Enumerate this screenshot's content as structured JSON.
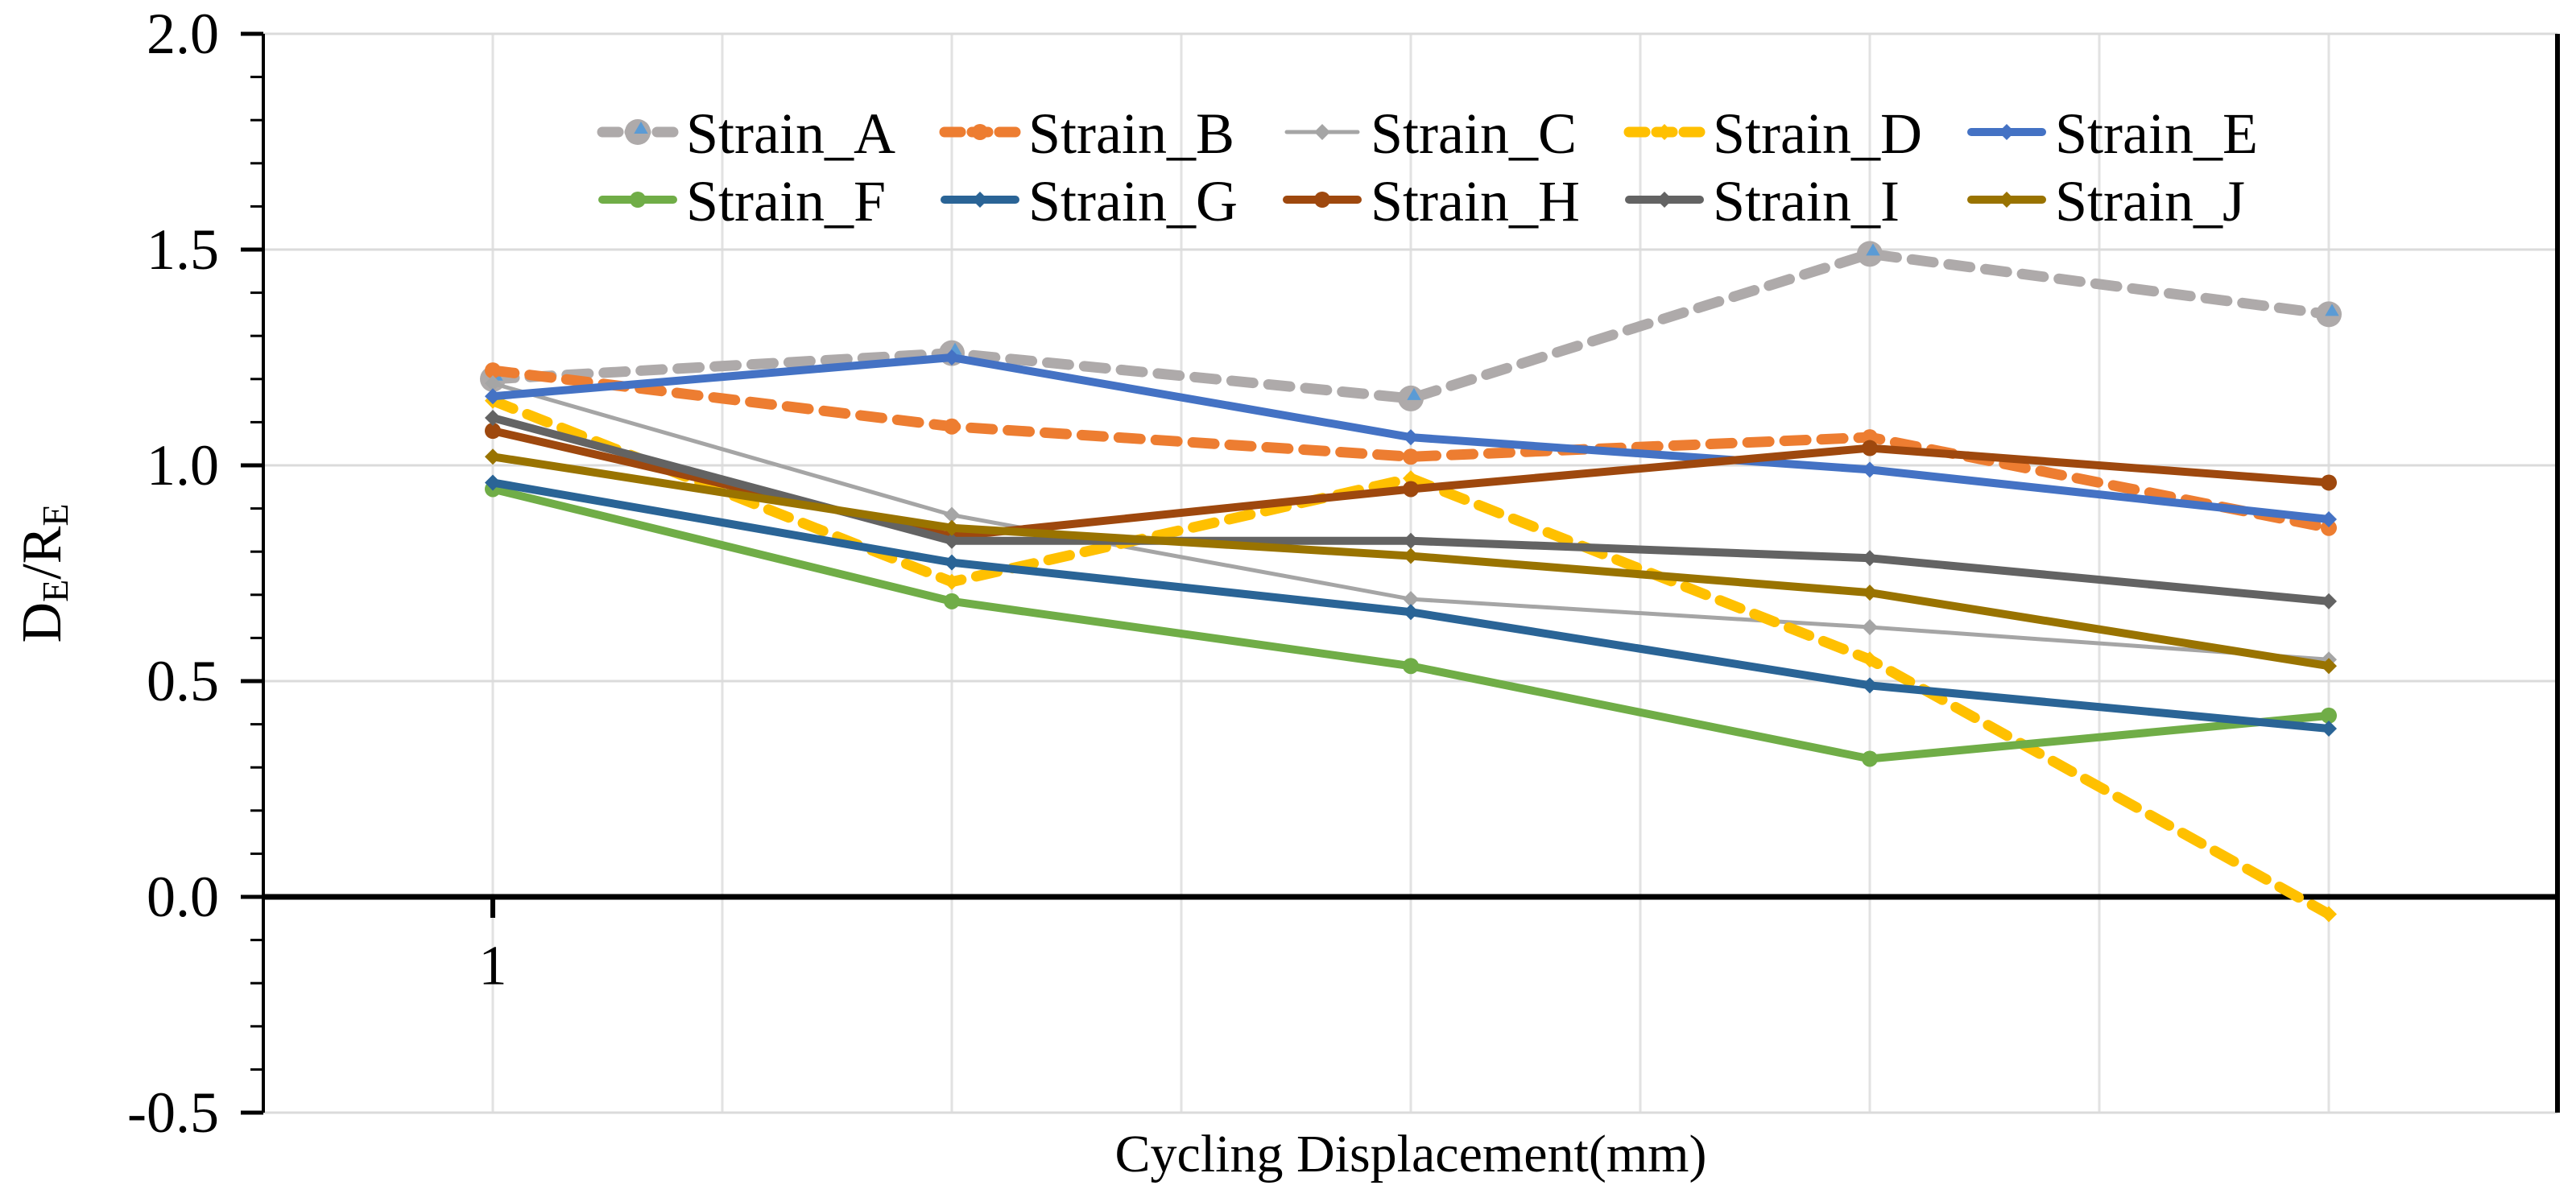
{
  "page": {
    "background": "#FFFFFF"
  },
  "chart_data": {
    "type": "line",
    "title": "",
    "xlabel": "Cycling Displacement(mm)",
    "ylabel": "DE/RE",
    "ylabel_parts": [
      {
        "t": "D",
        "sub": false
      },
      {
        "t": "E",
        "sub": true
      },
      {
        "t": "/R",
        "sub": false
      },
      {
        "t": "E",
        "sub": true
      }
    ],
    "x": [
      1,
      2,
      3,
      4,
      5
    ],
    "x_tick_labels": [
      {
        "v": 1,
        "label": "1"
      }
    ],
    "ylim": [
      -0.5,
      2.0
    ],
    "y_ticks": [
      {
        "v": 2.0,
        "label": "2.0"
      },
      {
        "v": 1.5,
        "label": "1.5"
      },
      {
        "v": 1.0,
        "label": "1.0"
      },
      {
        "v": 0.5,
        "label": "0.5"
      },
      {
        "v": 0.0,
        "label": "0.0"
      },
      {
        "v": -0.5,
        "label": "-0.5"
      }
    ],
    "y_minor_tick_step": 0.1,
    "grid": {
      "vertical": true,
      "horizontal": true,
      "color": "#E0E0E0"
    },
    "legend_position": "top-center-two-rows",
    "accent_marker_color": "#5B9BD5",
    "series": [
      {
        "name": "Strain_A",
        "color": "#AEAAAA",
        "line_style": "dashed",
        "marker": "big-circle-with-triangle",
        "values": [
          1.2,
          1.26,
          1.155,
          1.49,
          1.35
        ]
      },
      {
        "name": "Strain_B",
        "color": "#ED7D31",
        "line_style": "dashed",
        "marker": "circle",
        "values": [
          1.22,
          1.09,
          1.02,
          1.065,
          0.855
        ]
      },
      {
        "name": "Strain_C",
        "color": "#A5A5A5",
        "line_style": "thin-solid",
        "marker": "diamond",
        "values": [
          1.19,
          0.885,
          0.69,
          0.625,
          0.55
        ]
      },
      {
        "name": "Strain_D",
        "color": "#FFC000",
        "line_style": "dashed",
        "marker": "diamond",
        "values": [
          1.15,
          0.73,
          0.97,
          0.55,
          -0.04
        ]
      },
      {
        "name": "Strain_E",
        "color": "#4472C4",
        "line_style": "solid",
        "marker": "diamond",
        "values": [
          1.16,
          1.25,
          1.065,
          0.99,
          0.875
        ]
      },
      {
        "name": "Strain_F",
        "color": "#70AD47",
        "line_style": "solid",
        "marker": "circle",
        "values": [
          0.945,
          0.685,
          0.535,
          0.32,
          0.42
        ]
      },
      {
        "name": "Strain_G",
        "color": "#2A6496",
        "line_style": "solid",
        "marker": "diamond",
        "values": [
          0.96,
          0.775,
          0.66,
          0.49,
          0.39
        ]
      },
      {
        "name": "Strain_H",
        "color": "#9E480E",
        "line_style": "solid",
        "marker": "circle",
        "values": [
          1.08,
          0.835,
          0.945,
          1.04,
          0.96
        ]
      },
      {
        "name": "Strain_I",
        "color": "#636363",
        "line_style": "solid",
        "marker": "diamond",
        "values": [
          1.11,
          0.825,
          0.825,
          0.785,
          0.685
        ]
      },
      {
        "name": "Strain_J",
        "color": "#997300",
        "line_style": "solid",
        "marker": "diamond",
        "values": [
          1.02,
          0.855,
          0.79,
          0.705,
          0.535
        ]
      }
    ]
  }
}
